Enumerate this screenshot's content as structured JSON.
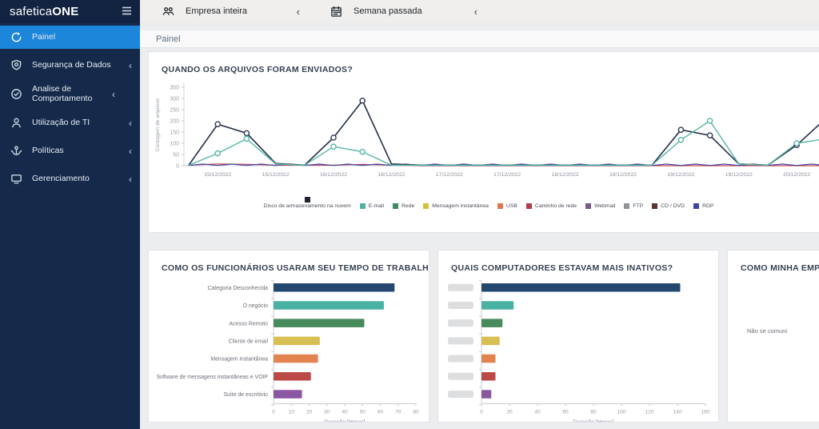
{
  "sidebar": {
    "logo": {
      "brand": "safetica",
      "product": "ONE"
    },
    "items": [
      {
        "label": "Painel",
        "active": true,
        "chevron": ""
      },
      {
        "label": "Segurança de Dados",
        "active": false,
        "chevron": "‹"
      },
      {
        "label": "Analise de Comportamento",
        "active": false,
        "chevron": "‹"
      },
      {
        "label": "Utilização de TI",
        "active": false,
        "chevron": "‹"
      },
      {
        "label": "Políticas",
        "active": false,
        "chevron": "‹"
      },
      {
        "label": "Gerenciamento",
        "active": false,
        "chevron": "‹"
      }
    ]
  },
  "topbar": {
    "scope": {
      "label": "Empresa inteira",
      "chevron": "‹"
    },
    "period": {
      "label": "Semana passada",
      "chevron": "‹"
    }
  },
  "breadcrumb": "Painel",
  "cards": {
    "files_sent": {
      "title": "QUANDO OS ARQUIVOS FORAM ENVIADOS?"
    },
    "time_usage": {
      "title": "COMO OS FUNCIONÁRIOS USARAM SEU TEMPO DE TRABALHO?"
    },
    "inactive_computers": {
      "title": "QUAIS COMPUTADORES ESTAVAM MAIS INATIVOS?"
    },
    "company": {
      "title": "COMO MINHA EMPR",
      "body": "Não se comuni"
    }
  },
  "chart_data": [
    {
      "type": "line",
      "title": "QUANDO OS ARQUIVOS FORAM ENVIADOS?",
      "ylabel": "Contagem de arquivos",
      "ylim": [
        0,
        350
      ],
      "yticks": [
        0,
        50,
        100,
        150,
        200,
        250,
        300,
        350
      ],
      "x_tick_labels": [
        "15/12/2022",
        "15/12/2022",
        "16/12/2022",
        "16/12/2022",
        "17/12/2022",
        "17/12/2022",
        "18/12/2022",
        "18/12/2022",
        "19/12/2022",
        "19/12/2022",
        "20/12/2022"
      ],
      "label_indices": [
        1,
        3,
        5,
        7,
        9,
        11,
        13,
        15,
        17,
        19,
        21
      ],
      "legend_position": "bottom",
      "grid": false,
      "legend": [
        {
          "name": "Disco de armazenamento na nuvem",
          "color": "#20262e",
          "stacked": true
        },
        {
          "name": "E-mail",
          "color": "#4db3a4"
        },
        {
          "name": "Rede",
          "color": "#3e8a62"
        },
        {
          "name": "Mensagem instantânea",
          "color": "#d3c13c"
        },
        {
          "name": "USB",
          "color": "#e0764f"
        },
        {
          "name": "Caminho de rede",
          "color": "#b03c4c"
        },
        {
          "name": "Webmail",
          "color": "#7b5a85"
        },
        {
          "name": "FTP",
          "color": "#8f9398"
        },
        {
          "name": "CD / DVD",
          "color": "#5c3434"
        },
        {
          "name": "RDP",
          "color": "#4143a0"
        }
      ],
      "series": [
        {
          "name": "USB",
          "color": "#c4434b",
          "width": 1.2,
          "markers": false,
          "values": [
            2,
            8,
            6,
            2,
            2,
            2,
            6,
            2,
            0,
            0,
            0,
            0,
            0,
            0,
            0,
            0,
            0,
            0,
            0,
            0,
            0,
            0,
            0
          ]
        },
        {
          "name": "RDP",
          "color": "#4648a8",
          "width": 1.2,
          "markers": false,
          "step": 0.5,
          "values": [
            1,
            7,
            1,
            7,
            1,
            7,
            1,
            7,
            1,
            7,
            1,
            7,
            1,
            7,
            1,
            7,
            1,
            7,
            1,
            7,
            1,
            7,
            1,
            7,
            1,
            7,
            1,
            7,
            1,
            7,
            1,
            7,
            1,
            7,
            1,
            7,
            1,
            7,
            1,
            7,
            1,
            7,
            1,
            7,
            1
          ]
        },
        {
          "name": "Disco de armazenamento na nuvem",
          "color": "#2c3850",
          "width": 1.7,
          "markers": true,
          "values": [
            2,
            185,
            145,
            10,
            2,
            125,
            290,
            8,
            2,
            2,
            2,
            2,
            2,
            2,
            2,
            2,
            2,
            160,
            135,
            8,
            2,
            92,
            210
          ]
        },
        {
          "name": "E-mail",
          "color": "#56b7a7",
          "width": 1.4,
          "markers": true,
          "values": [
            2,
            55,
            120,
            8,
            2,
            85,
            62,
            2,
            2,
            2,
            2,
            2,
            2,
            2,
            2,
            2,
            2,
            115,
            200,
            8,
            2,
            100,
            120
          ]
        }
      ]
    },
    {
      "type": "bar",
      "title": "COMO OS FUNCIONÁRIOS USARAM SEU TEMPO DE TRABALHO?",
      "orientation": "horizontal",
      "categories": [
        "Categoria Desconhecida",
        "O negócio",
        "Acesso Remoto",
        "Cliente de email",
        "Mensagem instantânea",
        "Software de mensagens instantâneas e VOIP",
        "Suíte de escritório"
      ],
      "values": [
        68,
        62,
        51,
        26,
        25,
        21,
        16
      ],
      "colors": [
        "#23476f",
        "#4ab2a3",
        "#478a5c",
        "#d8bf54",
        "#e28350",
        "#bb4a47",
        "#8c57a2"
      ],
      "xlabel": "Duração [Horas]",
      "xlim": [
        0,
        80
      ],
      "xticks": [
        0,
        10,
        20,
        30,
        40,
        50,
        60,
        70,
        80
      ],
      "labels_redacted": false
    },
    {
      "type": "bar",
      "title": "QUAIS COMPUTADORES ESTAVAM MAIS INATIVOS?",
      "orientation": "horizontal",
      "categories": [
        "[redacted]",
        "[redacted]",
        "[redacted]",
        "[redacted]",
        "[redacted]",
        "[redacted]",
        "[redacted]"
      ],
      "values": [
        142,
        23,
        15,
        13,
        10,
        10,
        7
      ],
      "colors": [
        "#23476f",
        "#4ab2a3",
        "#478a5c",
        "#d8bf54",
        "#e28350",
        "#bb4a47",
        "#8c57a2"
      ],
      "xlabel": "Duração [Horas]",
      "xlim": [
        0,
        160
      ],
      "xticks": [
        0,
        20,
        40,
        60,
        80,
        100,
        120,
        140,
        160
      ],
      "labels_redacted": true
    }
  ]
}
